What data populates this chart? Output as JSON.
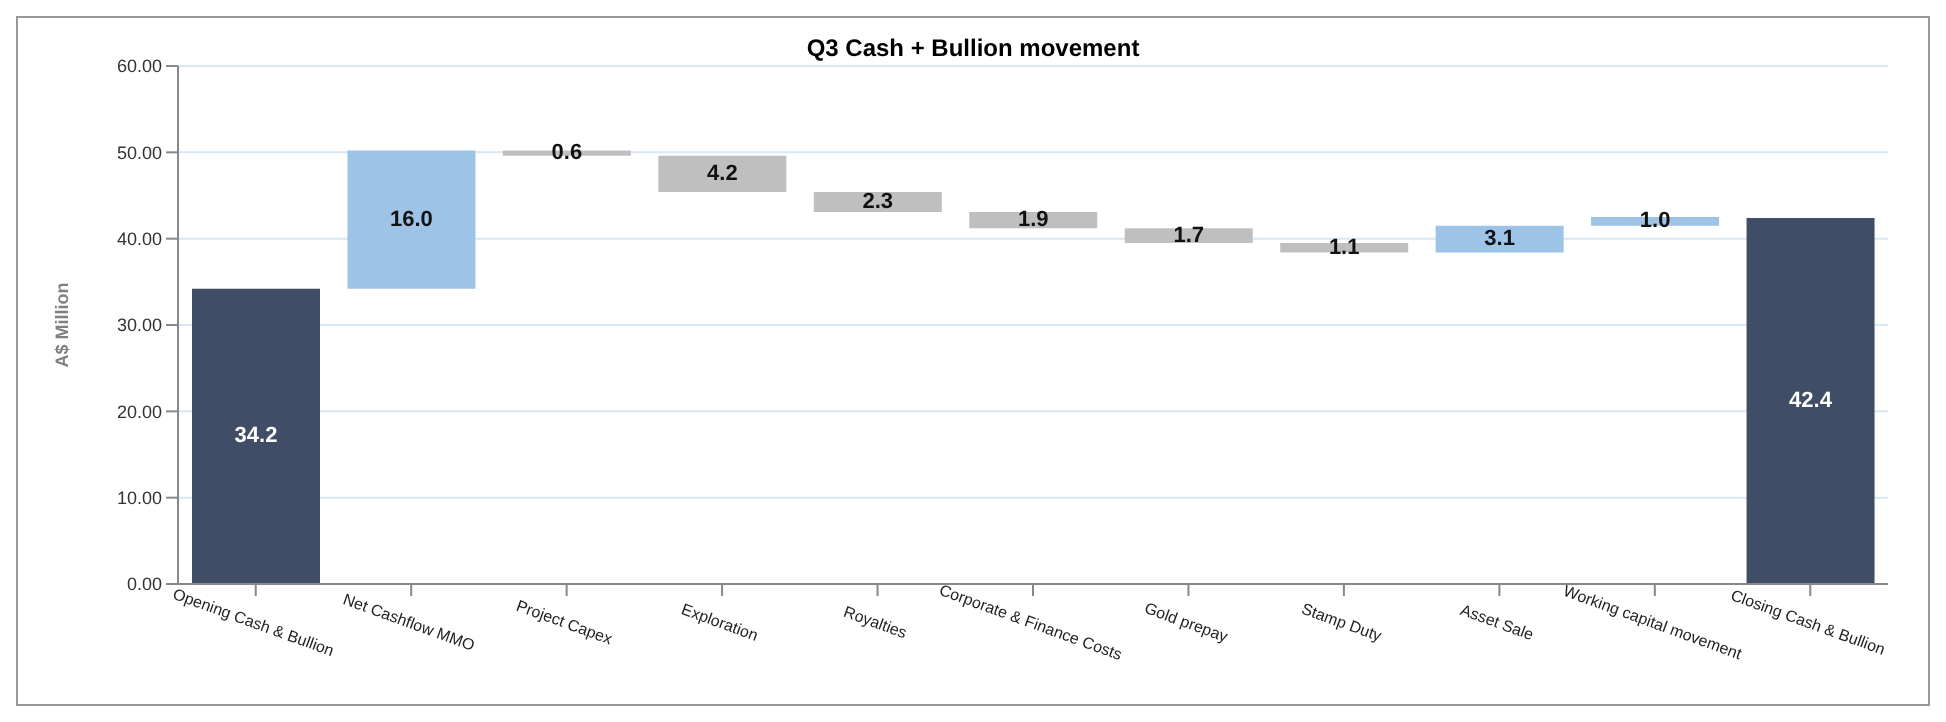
{
  "chart_data": {
    "type": "bar",
    "title": "Q3 Cash + Bullion  movement",
    "ylabel": "A$ Million",
    "categories": [
      "Opening Cash & Bullion",
      "Net Cashflow MMO",
      "Project Capex",
      "Exploration",
      "Royalties",
      "Corporate & Finance Costs",
      "Gold prepay",
      "Stamp Duty",
      "Asset Sale",
      "Working capital movement",
      "Closing Cash & Bullion"
    ],
    "values": [
      34.2,
      16.0,
      0.6,
      4.2,
      2.3,
      1.9,
      1.7,
      1.1,
      3.1,
      1.0,
      42.4
    ],
    "base": [
      0,
      34.2,
      49.6,
      45.4,
      43.1,
      41.2,
      39.5,
      38.4,
      38.4,
      41.5,
      0
    ],
    "colors": [
      "#3f4e66",
      "#9dc3e6",
      "#bfbfbf",
      "#bfbfbf",
      "#bfbfbf",
      "#bfbfbf",
      "#bfbfbf",
      "#bfbfbf",
      "#9dc3e6",
      "#9dc3e6",
      "#3f4e66"
    ],
    "value_labels": [
      "34.2",
      "16.0",
      "0.6",
      "4.2",
      "2.3",
      "1.9",
      "1.7",
      "1.1",
      "3.1",
      "1.0",
      "42.4"
    ],
    "ylim": [
      0,
      60
    ],
    "yticks": [
      {
        "value": 0,
        "label": "0.00"
      },
      {
        "value": 10,
        "label": "10.00"
      },
      {
        "value": 20,
        "label": "20.00"
      },
      {
        "value": 30,
        "label": "30.00"
      },
      {
        "value": 40,
        "label": "40.00"
      },
      {
        "value": 50,
        "label": "50.00"
      },
      {
        "value": 60,
        "label": "60.00"
      }
    ],
    "grid": "y",
    "legend": false
  }
}
